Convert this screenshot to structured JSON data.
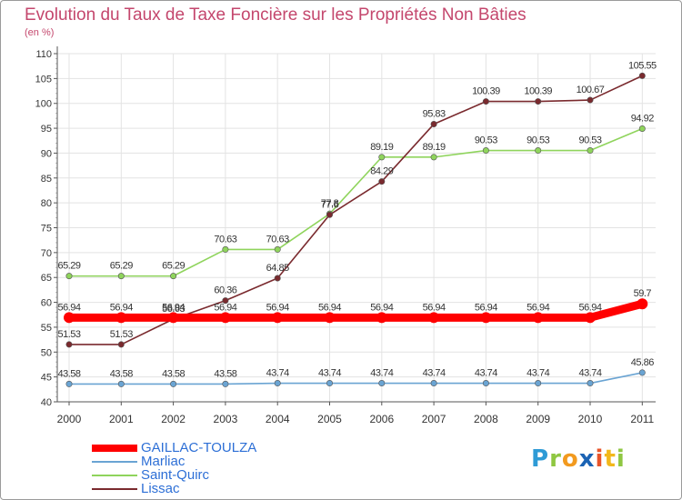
{
  "title": "Evolution du Taux de Taxe Foncière sur les Propriétés Non Bâties",
  "unit_label": "(en %)",
  "logo": {
    "text": "Proxiti",
    "letters": [
      {
        "char": "P",
        "color": "#2e9bd6"
      },
      {
        "char": "r",
        "color": "#8fc742"
      },
      {
        "char": "o",
        "color": "#f29a1f"
      },
      {
        "char": "x",
        "color": "#1b63b4"
      },
      {
        "char": "i",
        "color": "#e8542a"
      },
      {
        "char": "t",
        "color": "#f2b81b"
      },
      {
        "char": "i",
        "color": "#8fc742"
      }
    ]
  },
  "chart_data": {
    "type": "line",
    "x": [
      "2000",
      "2001",
      "2002",
      "2003",
      "2004",
      "2005",
      "2006",
      "2007",
      "2008",
      "2009",
      "2010",
      "2011"
    ],
    "ylim": [
      40,
      110
    ],
    "yticks": [
      40,
      45,
      50,
      55,
      60,
      65,
      70,
      75,
      80,
      85,
      90,
      95,
      100,
      105,
      110
    ],
    "grid": true,
    "legend_position": "bottom-left",
    "series": [
      {
        "name": "GAILLAC-TOULZA",
        "color": "#ff0000",
        "values": [
          56.94,
          56.94,
          56.94,
          56.94,
          56.94,
          56.94,
          56.94,
          56.94,
          56.94,
          56.94,
          56.94,
          59.7
        ],
        "labels": [
          "56.94",
          "56.94",
          "56.94",
          "56.94",
          "56.94",
          "56.94",
          "56.94",
          "56.94",
          "56.94",
          "56.94",
          "56.94",
          "59.7"
        ]
      },
      {
        "name": "Marliac",
        "color": "#6aa4d3",
        "values": [
          43.58,
          43.58,
          43.58,
          43.58,
          43.74,
          43.74,
          43.74,
          43.74,
          43.74,
          43.74,
          43.74,
          45.86
        ],
        "labels": [
          "43.58",
          "43.58",
          "43.58",
          "43.58",
          "43.74",
          "43.74",
          "43.74",
          "43.74",
          "43.74",
          "43.74",
          "43.74",
          "45.86"
        ]
      },
      {
        "name": "Saint-Quirc",
        "color": "#8fd45c",
        "values": [
          65.29,
          65.29,
          65.29,
          70.63,
          70.63,
          77.8,
          89.19,
          89.19,
          90.53,
          90.53,
          90.53,
          94.92
        ],
        "labels": [
          "65.29",
          "65.29",
          "65.29",
          "70.63",
          "70.63",
          "77.8",
          "89.19",
          "89.19",
          "90.53",
          "90.53",
          "90.53",
          "94.92"
        ]
      },
      {
        "name": "Lissac",
        "color": "#7a2a2e",
        "values": [
          51.53,
          51.53,
          56.63,
          60.36,
          64.85,
          77.6,
          84.29,
          95.83,
          100.39,
          100.39,
          100.67,
          105.55
        ],
        "labels": [
          "51.53",
          "51.53",
          "56.63",
          "60.36",
          "64.85",
          "77.6",
          "84.29",
          "95.83",
          "100.39",
          "100.39",
          "100.67",
          "105.55"
        ]
      }
    ]
  }
}
